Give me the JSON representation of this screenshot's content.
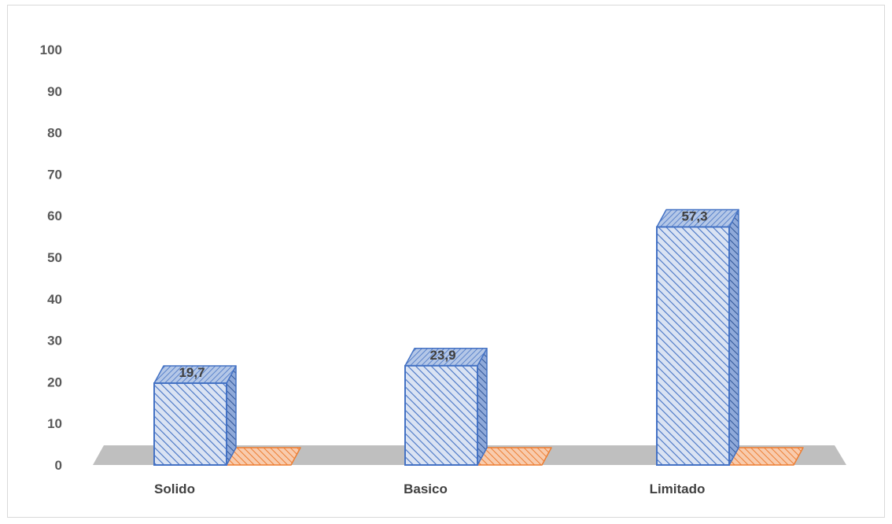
{
  "chart_data": {
    "type": "bar",
    "categories": [
      "Solido",
      "Basico",
      "Limitado"
    ],
    "series": [
      {
        "values": [
          19.7,
          23.9,
          57.3
        ],
        "color": "#4472C4",
        "pattern": "diagonal-stripes",
        "data_labels": [
          "19,7",
          "23,9",
          "57,3"
        ]
      },
      {
        "values": [
          0,
          0,
          0
        ],
        "color": "#ED7D31",
        "pattern": "diagonal-stripes"
      }
    ],
    "yticks": [
      "0",
      "10",
      "20",
      "30",
      "40",
      "50",
      "60",
      "70",
      "80",
      "90",
      "100"
    ],
    "ylim": [
      0,
      100
    ],
    "grid": false,
    "legend": "none",
    "floor_color": "#BFBFBF"
  }
}
